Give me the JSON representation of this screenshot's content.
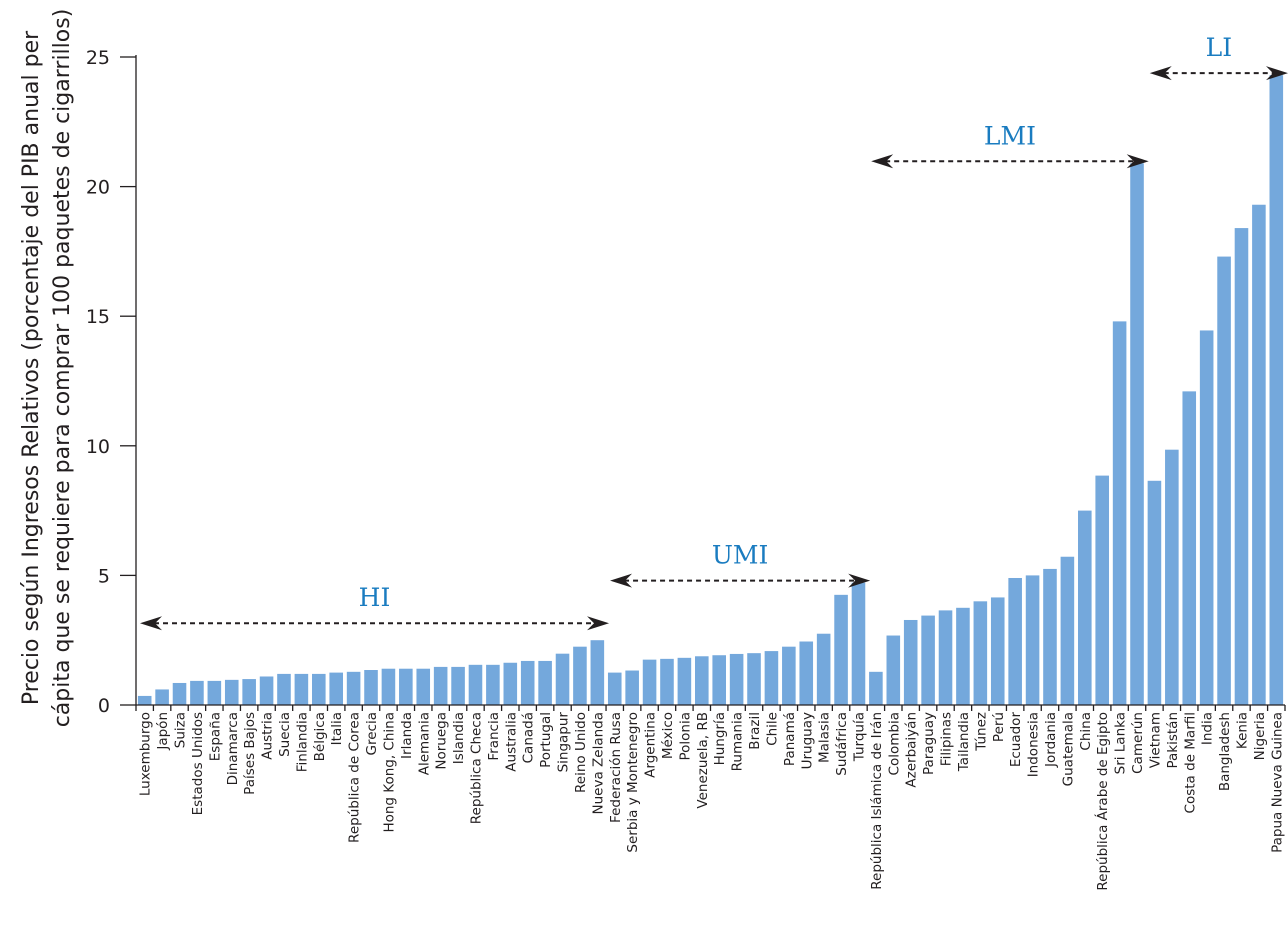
{
  "chart_data": {
    "type": "bar",
    "ylabel": [
      "Precio según Ingresos Relativos (porcentaje del PIB anual per",
      "cápita que se requiere para comprar 100 paquetes de cigarrillos)"
    ],
    "ylim": [
      0,
      25
    ],
    "yticks": [
      0,
      5,
      10,
      15,
      20,
      25
    ],
    "categories": [
      "Luxemburgo",
      "Japón",
      "Suiza",
      "Estados Unidos",
      "España",
      "Dinamarca",
      "Países Bajos",
      "Austria",
      "Suecia",
      "Finlandia",
      "Bélgica",
      "Italia",
      "República de Corea",
      "Grecia",
      "Hong Kong, China",
      "Irlanda",
      "Alemania",
      "Noruega",
      "Islandia",
      "República Checa",
      "Francia",
      "Australia",
      "Canadá",
      "Portugal",
      "Singapur",
      "Reino Unido",
      "Nueva Zelanda",
      "Federación Rusa",
      "Serbia y Montenegro",
      "Argentina",
      "México",
      "Polonia",
      "Venezuela, RB",
      "Hungría",
      "Rumania",
      "Brazil",
      "Chile",
      "Panamá",
      "Uruguay",
      "Malasia",
      "Sudáfrica",
      "Turquía",
      "República Islámica de Irán",
      "Colombia",
      "Azerbaiyán",
      "Paraguay",
      "Filipinas",
      "Tailandia",
      "Túnez",
      "Perú",
      "Ecuador",
      "Indonesia",
      "Jordania",
      "Guatemala",
      "China",
      "República Árabe de Egipto",
      "Sri Lanka",
      "Camerún",
      "Vietnam",
      "Pakistán",
      "Costa de Marfil",
      "India",
      "Bangladesh",
      "Kenia",
      "Nigeria",
      "Papua Nueva Guinea"
    ],
    "values": [
      0.35,
      0.6,
      0.85,
      0.93,
      0.93,
      0.97,
      1.0,
      1.1,
      1.2,
      1.2,
      1.2,
      1.25,
      1.28,
      1.35,
      1.4,
      1.4,
      1.4,
      1.47,
      1.47,
      1.55,
      1.55,
      1.63,
      1.7,
      1.7,
      1.98,
      2.25,
      2.5,
      1.25,
      1.33,
      1.75,
      1.78,
      1.82,
      1.88,
      1.92,
      1.97,
      2.0,
      2.08,
      2.25,
      2.45,
      2.75,
      4.25,
      4.72,
      1.28,
      2.68,
      3.28,
      3.45,
      3.65,
      3.75,
      4.0,
      4.15,
      4.9,
      5.0,
      5.25,
      5.72,
      7.5,
      8.85,
      14.8,
      20.9,
      8.65,
      9.85,
      12.1,
      14.45,
      17.3,
      18.4,
      19.3,
      24.3
    ],
    "groups": [
      {
        "label": "HI",
        "from": 0,
        "to": 26
      },
      {
        "label": "UMI",
        "from": 27,
        "to": 41
      },
      {
        "label": "LMI",
        "from": 42,
        "to": 57
      },
      {
        "label": "LI",
        "from": 58,
        "to": 65
      }
    ],
    "colors": {
      "bar": "#74a8dc",
      "group_label": "#1a7cc0",
      "axis": "#231f20"
    }
  }
}
